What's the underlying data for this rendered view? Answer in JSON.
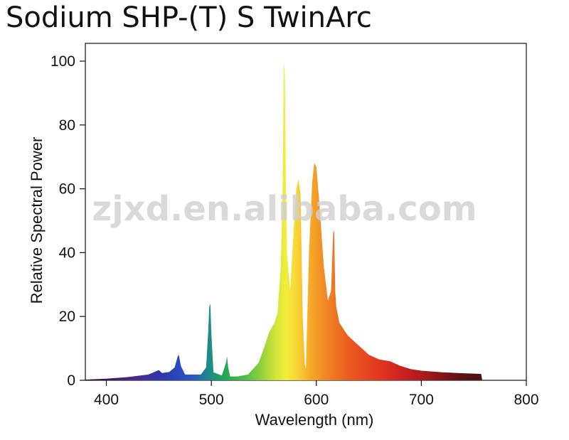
{
  "chart_data": {
    "type": "area",
    "title": "Sodium SHP-(T) S TwinArc",
    "xlabel": "Wavelength (nm)",
    "ylabel": "Relative Spectral Power",
    "xlim": [
      380,
      800
    ],
    "ylim": [
      0,
      100
    ],
    "x_ticks": [
      400,
      500,
      600,
      700,
      800
    ],
    "y_ticks": [
      0,
      20,
      40,
      60,
      80,
      100
    ],
    "fill": "wavelength-colored spectrum",
    "x": [
      380,
      400,
      420,
      440,
      445,
      450,
      453,
      460,
      465,
      468,
      469,
      471,
      475,
      490,
      495,
      497,
      498,
      499,
      500,
      502,
      510,
      514,
      515,
      516,
      518,
      525,
      535,
      545,
      550,
      555,
      560,
      563,
      566,
      568,
      569,
      570,
      571,
      572,
      575,
      578,
      581,
      583,
      585,
      587,
      589,
      590,
      593,
      596,
      598,
      600,
      603,
      607,
      611,
      614,
      616,
      617,
      618,
      619,
      622,
      630,
      640,
      650,
      660,
      670,
      680,
      690,
      700,
      720,
      740,
      757,
      758
    ],
    "y": [
      0.2,
      0.5,
      1.0,
      1.8,
      2.5,
      3.2,
      2.3,
      2.6,
      4.0,
      7.5,
      8.0,
      4.5,
      1.8,
      1.8,
      4.0,
      15.0,
      23.0,
      24.0,
      15.0,
      2.5,
      1.5,
      5.5,
      7.5,
      4.0,
      1.2,
      1.2,
      1.8,
      5.5,
      10.0,
      15.0,
      18.0,
      21.0,
      35.0,
      60.0,
      100.0,
      95.0,
      60.0,
      40.0,
      28.0,
      45.0,
      60.0,
      63.0,
      58.0,
      20.0,
      5.0,
      3.5,
      40.0,
      62.0,
      68.0,
      67.0,
      55.0,
      36.0,
      25.0,
      28.0,
      46.0,
      47.0,
      28.0,
      23.0,
      18.0,
      14.0,
      11.0,
      8.0,
      6.5,
      6.0,
      4.5,
      3.5,
      3.0,
      2.5,
      2.2,
      2.0,
      0
    ],
    "watermark": "zjxd.en.alibaba.com"
  }
}
